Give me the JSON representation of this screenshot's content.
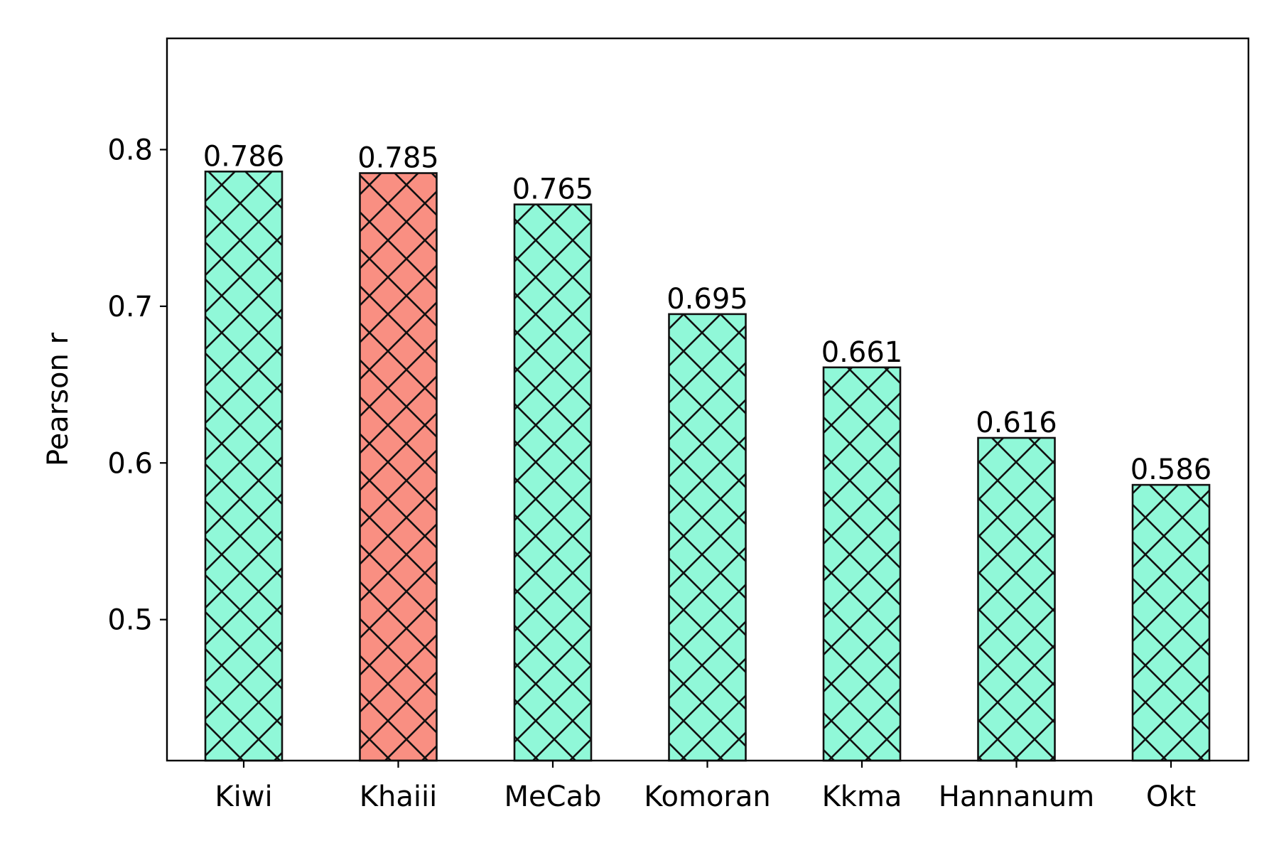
{
  "chart_data": {
    "type": "bar",
    "title": "",
    "xlabel": "",
    "ylabel": "Pearson r",
    "categories": [
      "Kiwi",
      "Khaiii",
      "MeCab",
      "Komoran",
      "Kkma",
      "Hannanum",
      "Okt"
    ],
    "values": [
      0.786,
      0.785,
      0.765,
      0.695,
      0.661,
      0.616,
      0.586
    ],
    "value_labels": [
      "0.786",
      "0.785",
      "0.765",
      "0.695",
      "0.661",
      "0.616",
      "0.586"
    ],
    "bar_colors": [
      "#90f8d8",
      "#f98f82",
      "#90f8d8",
      "#90f8d8",
      "#90f8d8",
      "#90f8d8",
      "#90f8d8"
    ],
    "hatch": "crosshatch-diagonal",
    "ylim": [
      0.41,
      0.871
    ],
    "yticks": [
      0.5,
      0.6,
      0.7,
      0.8
    ],
    "ytick_labels": [
      "0.5",
      "0.6",
      "0.7",
      "0.8"
    ],
    "grid": false,
    "legend": "none"
  }
}
